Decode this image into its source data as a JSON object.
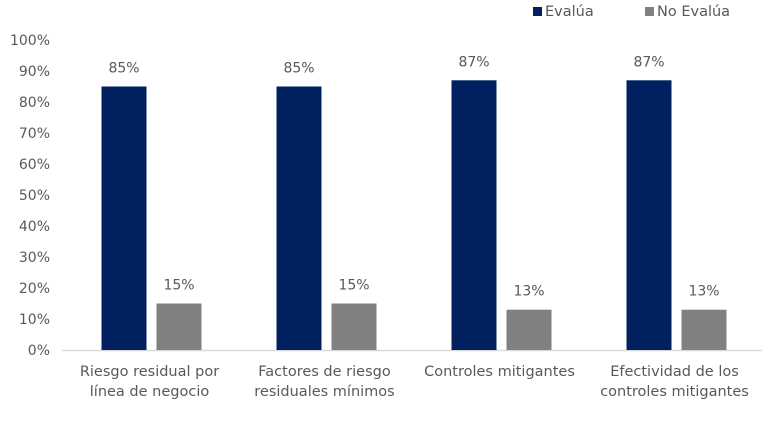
{
  "chart_data": {
    "type": "bar",
    "title": "",
    "xlabel": "",
    "ylabel": "",
    "ylim": [
      0,
      100
    ],
    "yticks": [
      "0%",
      "10%",
      "20%",
      "30%",
      "40%",
      "50%",
      "60%",
      "70%",
      "80%",
      "90%",
      "100%"
    ],
    "grid": false,
    "legend_position": "top-right",
    "categories": [
      [
        "Riesgo residual por",
        "línea de negocio"
      ],
      [
        "Factores de riesgo",
        "residuales mínimos"
      ],
      [
        "Controles mitigantes"
      ],
      [
        "Efectividad de los",
        "controles mitigantes"
      ]
    ],
    "series": [
      {
        "name": "Evalúa",
        "color": "#002060",
        "values": [
          85,
          85,
          87,
          87
        ],
        "labels": [
          "85%",
          "85%",
          "87%",
          "87%"
        ]
      },
      {
        "name": "No Evalúa",
        "color": "#808080",
        "values": [
          15,
          15,
          13,
          13
        ],
        "labels": [
          "15%",
          "15%",
          "13%",
          "13%"
        ]
      }
    ]
  }
}
